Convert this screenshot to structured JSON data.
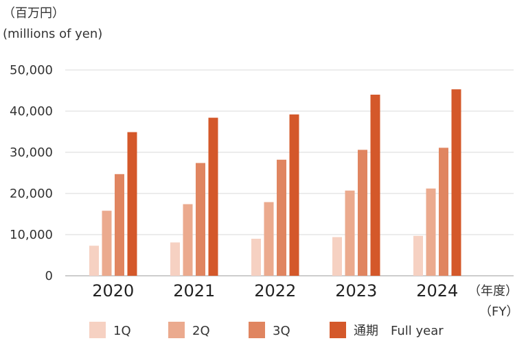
{
  "chart_data": {
    "type": "bar",
    "unit_jp": "（百万円）",
    "unit_en": "(millions of yen)",
    "fiscal_label_jp": "（年度）",
    "fiscal_label_en": "（FY）",
    "categories": [
      "2020",
      "2021",
      "2022",
      "2023",
      "2024"
    ],
    "series": [
      {
        "name": "1Q",
        "color": "#f6d1c2",
        "values": [
          7300,
          8100,
          9000,
          9400,
          9700
        ]
      },
      {
        "name": "2Q",
        "color": "#ebaa8e",
        "values": [
          15800,
          17400,
          17900,
          20700,
          21200
        ]
      },
      {
        "name": "3Q",
        "color": "#e08560",
        "values": [
          24700,
          27400,
          28200,
          30600,
          31100
        ]
      },
      {
        "name": "通期　Full year",
        "color": "#d4582a",
        "values": [
          34900,
          38400,
          39200,
          44000,
          45300
        ]
      }
    ],
    "ylim": [
      0,
      50000
    ],
    "yticks": [
      0,
      10000,
      20000,
      30000,
      40000,
      50000
    ],
    "ytick_labels": [
      "0",
      "10,000",
      "20,000",
      "30,000",
      "40,000",
      "50,000"
    ],
    "grid": true,
    "legend": "bottom"
  }
}
